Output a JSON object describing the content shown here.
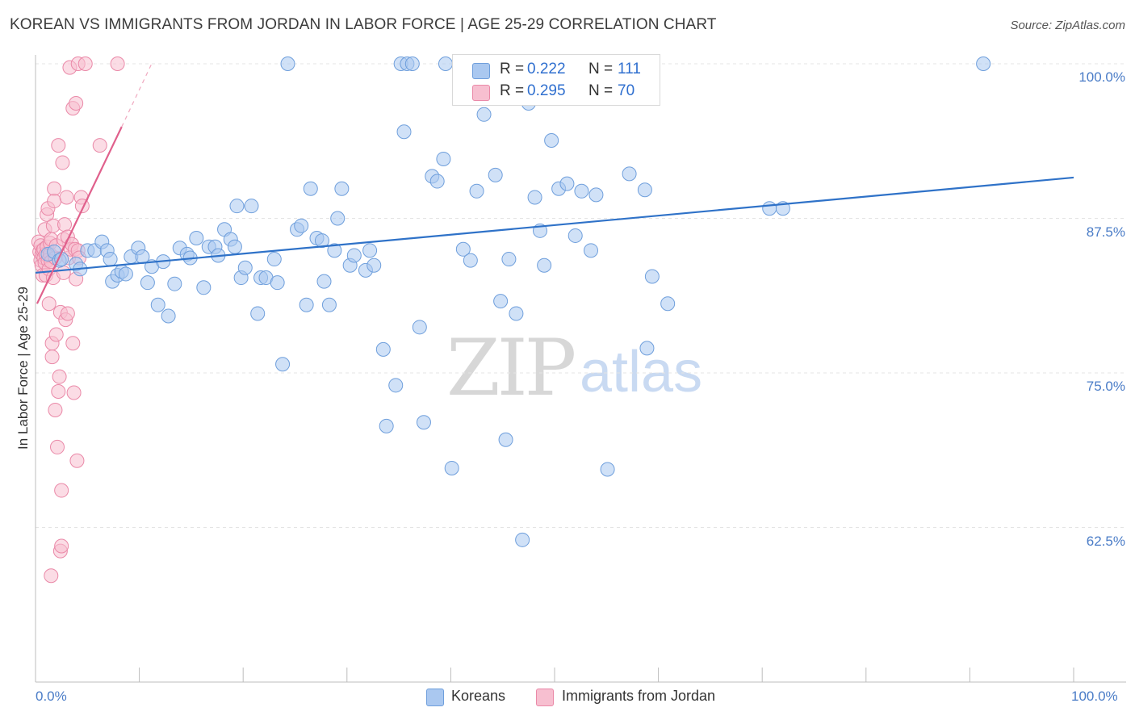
{
  "title": "KOREAN VS IMMIGRANTS FROM JORDAN IN LABOR FORCE | AGE 25-29 CORRELATION CHART",
  "source": "Source: ZipAtlas.com",
  "watermark": {
    "zip": "ZIP",
    "atlas": "atlas"
  },
  "legend_top": {
    "r_label": "R =",
    "n_label": "N =",
    "koreans": {
      "r": "0.222",
      "n": "111"
    },
    "jordan": {
      "r": "0.295",
      "n": "70"
    }
  },
  "legend_bottom": {
    "koreans": "Koreans",
    "jordan": "Immigrants from Jordan"
  },
  "colors": {
    "koreans_fill": "#aac8f0",
    "koreans_stroke": "#6f9fdc",
    "koreans_line": "#2f72c8",
    "jordan_fill": "#f7bfd0",
    "jordan_stroke": "#ea89a8",
    "jordan_line": "#e0608c",
    "axis_text": "#4a7cc7",
    "grid": "#e4e4e4"
  },
  "chart_data": {
    "type": "scatter",
    "title": "KOREAN VS IMMIGRANTS FROM JORDAN IN LABOR FORCE | AGE 25-29 CORRELATION CHART",
    "xlabel": "",
    "ylabel": "In Labor Force | Age 25-29",
    "xlim": [
      0,
      100
    ],
    "ylim": [
      50,
      100
    ],
    "x_tick_labels": [
      "0.0%",
      "100.0%"
    ],
    "y_ticks": [
      62.5,
      75.0,
      87.5,
      100.0
    ],
    "y_tick_labels": [
      "62.5%",
      "75.0%",
      "87.5%",
      "100.0%"
    ],
    "grid": true,
    "legend_position": "top-center",
    "series": [
      {
        "name": "Koreans",
        "trend": {
          "x": [
            0,
            100
          ],
          "y": [
            83.1,
            90.8
          ]
        },
        "points": [
          [
            1.2,
            84.6
          ],
          [
            1.8,
            84.8
          ],
          [
            2.3,
            84.1
          ],
          [
            2.5,
            84.2
          ],
          [
            3.9,
            83.8
          ],
          [
            4.3,
            83.4
          ],
          [
            5.0,
            84.9
          ],
          [
            5.7,
            84.9
          ],
          [
            6.4,
            85.6
          ],
          [
            6.9,
            84.9
          ],
          [
            7.2,
            84.2
          ],
          [
            7.4,
            82.4
          ],
          [
            7.9,
            82.9
          ],
          [
            8.3,
            83.2
          ],
          [
            8.7,
            83.0
          ],
          [
            9.2,
            84.4
          ],
          [
            9.9,
            85.1
          ],
          [
            10.3,
            84.4
          ],
          [
            10.8,
            82.3
          ],
          [
            11.2,
            83.6
          ],
          [
            11.8,
            80.5
          ],
          [
            12.3,
            84.0
          ],
          [
            12.8,
            79.6
          ],
          [
            13.4,
            82.2
          ],
          [
            13.9,
            85.1
          ],
          [
            14.6,
            84.6
          ],
          [
            14.9,
            84.3
          ],
          [
            15.5,
            85.9
          ],
          [
            16.2,
            81.9
          ],
          [
            16.7,
            85.2
          ],
          [
            17.3,
            85.2
          ],
          [
            17.6,
            84.5
          ],
          [
            18.2,
            86.6
          ],
          [
            18.8,
            85.8
          ],
          [
            19.2,
            85.2
          ],
          [
            19.4,
            88.5
          ],
          [
            19.8,
            82.7
          ],
          [
            20.2,
            83.5
          ],
          [
            20.8,
            88.5
          ],
          [
            21.4,
            79.8
          ],
          [
            21.7,
            82.7
          ],
          [
            22.2,
            82.7
          ],
          [
            23.0,
            84.2
          ],
          [
            23.3,
            82.3
          ],
          [
            23.8,
            75.7
          ],
          [
            24.3,
            100.0
          ],
          [
            25.2,
            86.6
          ],
          [
            25.6,
            86.9
          ],
          [
            26.1,
            80.5
          ],
          [
            26.5,
            89.9
          ],
          [
            27.1,
            85.9
          ],
          [
            27.6,
            85.7
          ],
          [
            27.8,
            82.4
          ],
          [
            28.3,
            80.5
          ],
          [
            28.8,
            84.9
          ],
          [
            29.1,
            87.5
          ],
          [
            29.5,
            89.9
          ],
          [
            30.3,
            83.7
          ],
          [
            30.7,
            84.5
          ],
          [
            31.8,
            83.3
          ],
          [
            32.2,
            84.9
          ],
          [
            32.6,
            83.7
          ],
          [
            33.5,
            76.9
          ],
          [
            33.8,
            70.7
          ],
          [
            34.7,
            74.0
          ],
          [
            35.2,
            100.0
          ],
          [
            35.5,
            94.5
          ],
          [
            35.8,
            100.0
          ],
          [
            36.3,
            100.0
          ],
          [
            37.0,
            78.7
          ],
          [
            37.4,
            71.0
          ],
          [
            38.2,
            90.9
          ],
          [
            38.7,
            90.5
          ],
          [
            39.3,
            92.3
          ],
          [
            39.5,
            100.0
          ],
          [
            40.1,
            67.3
          ],
          [
            41.2,
            85.0
          ],
          [
            41.9,
            84.1
          ],
          [
            42.5,
            89.7
          ],
          [
            43.2,
            95.9
          ],
          [
            44.3,
            91.0
          ],
          [
            44.8,
            80.8
          ],
          [
            45.3,
            69.6
          ],
          [
            45.6,
            84.2
          ],
          [
            46.3,
            79.8
          ],
          [
            46.9,
            61.5
          ],
          [
            47.5,
            96.8
          ],
          [
            48.1,
            89.2
          ],
          [
            48.6,
            86.5
          ],
          [
            49.0,
            83.7
          ],
          [
            49.7,
            93.8
          ],
          [
            50.4,
            89.9
          ],
          [
            51.2,
            90.3
          ],
          [
            52.0,
            86.1
          ],
          [
            52.6,
            89.7
          ],
          [
            53.5,
            84.9
          ],
          [
            54.0,
            89.4
          ],
          [
            55.1,
            67.2
          ],
          [
            55.9,
            100.0
          ],
          [
            56.1,
            100.0
          ],
          [
            57.2,
            91.1
          ],
          [
            58.7,
            89.8
          ],
          [
            58.9,
            77.0
          ],
          [
            59.4,
            82.8
          ],
          [
            60.9,
            80.6
          ],
          [
            70.7,
            88.3
          ],
          [
            72.0,
            88.3
          ],
          [
            91.3,
            100.0
          ]
        ]
      },
      {
        "name": "Immigrants from Jordan",
        "trend": {
          "x": [
            0.15,
            8.3
          ],
          "y": [
            80.6,
            94.9
          ]
        },
        "trend_dashed": {
          "x": [
            8.3,
            11.3
          ],
          "y": [
            94.9,
            100.2
          ]
        },
        "points": [
          [
            0.3,
            85.6
          ],
          [
            0.4,
            84.8
          ],
          [
            0.5,
            84.1
          ],
          [
            0.5,
            85.3
          ],
          [
            0.6,
            83.7
          ],
          [
            0.6,
            84.6
          ],
          [
            0.7,
            84.9
          ],
          [
            0.7,
            82.9
          ],
          [
            0.8,
            85.0
          ],
          [
            0.8,
            84.3
          ],
          [
            0.9,
            86.6
          ],
          [
            0.9,
            83.9
          ],
          [
            1.0,
            82.9
          ],
          [
            1.0,
            84.6
          ],
          [
            1.1,
            87.8
          ],
          [
            1.1,
            85.2
          ],
          [
            1.2,
            84.1
          ],
          [
            1.2,
            88.3
          ],
          [
            1.3,
            83.4
          ],
          [
            1.3,
            80.6
          ],
          [
            1.4,
            84.6
          ],
          [
            1.4,
            85.5
          ],
          [
            1.5,
            85.8
          ],
          [
            1.5,
            84.0
          ],
          [
            1.6,
            77.4
          ],
          [
            1.6,
            76.3
          ],
          [
            1.7,
            82.7
          ],
          [
            1.7,
            86.9
          ],
          [
            1.8,
            89.9
          ],
          [
            1.8,
            88.9
          ],
          [
            1.9,
            72.0
          ],
          [
            1.9,
            84.3
          ],
          [
            2.0,
            78.1
          ],
          [
            2.0,
            85.3
          ],
          [
            2.1,
            69.0
          ],
          [
            2.2,
            93.4
          ],
          [
            2.2,
            73.5
          ],
          [
            2.3,
            74.7
          ],
          [
            2.4,
            79.9
          ],
          [
            2.4,
            60.6
          ],
          [
            2.5,
            61.0
          ],
          [
            2.5,
            65.5
          ],
          [
            2.6,
            92.0
          ],
          [
            2.7,
            85.8
          ],
          [
            2.7,
            83.1
          ],
          [
            2.8,
            87.0
          ],
          [
            2.9,
            79.3
          ],
          [
            3.0,
            89.2
          ],
          [
            3.1,
            79.8
          ],
          [
            3.1,
            86.0
          ],
          [
            3.2,
            84.3
          ],
          [
            3.3,
            99.7
          ],
          [
            3.4,
            85.0
          ],
          [
            3.5,
            85.4
          ],
          [
            3.6,
            77.4
          ],
          [
            3.6,
            96.4
          ],
          [
            3.7,
            73.4
          ],
          [
            3.8,
            85.0
          ],
          [
            3.9,
            96.8
          ],
          [
            3.9,
            82.6
          ],
          [
            4.0,
            67.9
          ],
          [
            4.1,
            100.0
          ],
          [
            4.1,
            84.9
          ],
          [
            4.2,
            84.3
          ],
          [
            4.4,
            89.2
          ],
          [
            4.5,
            88.5
          ],
          [
            4.8,
            100.0
          ],
          [
            6.2,
            93.4
          ],
          [
            7.9,
            100.0
          ],
          [
            1.5,
            58.6
          ]
        ]
      }
    ]
  }
}
